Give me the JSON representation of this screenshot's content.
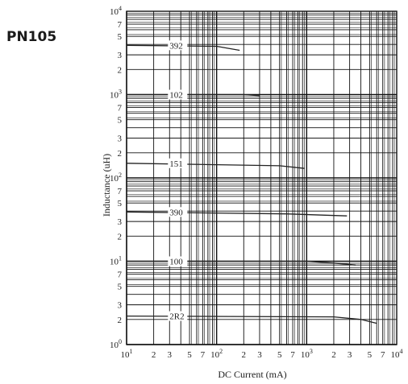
{
  "part_label": "PN105",
  "chart_data": {
    "type": "line",
    "title": "",
    "xlabel": "DC Current (mA)",
    "ylabel": "Inductance  (uH)",
    "x_scale": "log",
    "y_scale": "log",
    "xlim": [
      10,
      10000
    ],
    "ylim": [
      1,
      10000
    ],
    "grid": true,
    "x_ticks": [
      {
        "value": 10,
        "base": "10",
        "exp": "1"
      },
      {
        "value": 20,
        "base": "2"
      },
      {
        "value": 30,
        "base": "3"
      },
      {
        "value": 50,
        "base": "5"
      },
      {
        "value": 70,
        "base": "7"
      },
      {
        "value": 100,
        "base": "10",
        "exp": "2"
      },
      {
        "value": 200,
        "base": "2"
      },
      {
        "value": 300,
        "base": "3"
      },
      {
        "value": 500,
        "base": "5"
      },
      {
        "value": 700,
        "base": "7"
      },
      {
        "value": 1000,
        "base": "10",
        "exp": "3"
      },
      {
        "value": 2000,
        "base": "2"
      },
      {
        "value": 3000,
        "base": "3"
      },
      {
        "value": 5000,
        "base": "5"
      },
      {
        "value": 7000,
        "base": "7"
      },
      {
        "value": 10000,
        "base": "10",
        "exp": "4"
      }
    ],
    "y_ticks": [
      {
        "value": 1,
        "base": "10",
        "exp": "0"
      },
      {
        "value": 2,
        "base": "2"
      },
      {
        "value": 3,
        "base": "3"
      },
      {
        "value": 5,
        "base": "5"
      },
      {
        "value": 7,
        "base": "7"
      },
      {
        "value": 10,
        "base": "10",
        "exp": "1"
      },
      {
        "value": 20,
        "base": "2"
      },
      {
        "value": 30,
        "base": "3"
      },
      {
        "value": 50,
        "base": "5"
      },
      {
        "value": 70,
        "base": "7"
      },
      {
        "value": 100,
        "base": "10",
        "exp": "2"
      },
      {
        "value": 200,
        "base": "2"
      },
      {
        "value": 300,
        "base": "3"
      },
      {
        "value": 500,
        "base": "5"
      },
      {
        "value": 700,
        "base": "7"
      },
      {
        "value": 1000,
        "base": "10",
        "exp": "3"
      },
      {
        "value": 2000,
        "base": "2"
      },
      {
        "value": 3000,
        "base": "3"
      },
      {
        "value": 5000,
        "base": "5"
      },
      {
        "value": 7000,
        "base": "7"
      },
      {
        "value": 10000,
        "base": "10",
        "exp": "4"
      }
    ],
    "series": [
      {
        "name": "392",
        "label_x": 30,
        "points": [
          [
            10,
            3900
          ],
          [
            100,
            3800
          ],
          [
            180,
            3400
          ]
        ]
      },
      {
        "name": "102",
        "label_x": 30,
        "points": [
          [
            10,
            1000
          ],
          [
            200,
            1000
          ],
          [
            300,
            970
          ]
        ]
      },
      {
        "name": "151",
        "label_x": 30,
        "points": [
          [
            10,
            150
          ],
          [
            500,
            140
          ],
          [
            950,
            130
          ]
        ]
      },
      {
        "name": "390",
        "label_x": 30,
        "points": [
          [
            10,
            39
          ],
          [
            600,
            37
          ],
          [
            2800,
            35
          ]
        ]
      },
      {
        "name": "100",
        "label_x": 30,
        "points": [
          [
            10,
            10
          ],
          [
            1000,
            10
          ],
          [
            2000,
            9.5
          ],
          [
            3500,
            9
          ]
        ]
      },
      {
        "name": "2R2",
        "label_x": 30,
        "points": [
          [
            10,
            2.2
          ],
          [
            2000,
            2.15
          ],
          [
            4000,
            2.0
          ],
          [
            6000,
            1.8
          ]
        ]
      }
    ]
  }
}
